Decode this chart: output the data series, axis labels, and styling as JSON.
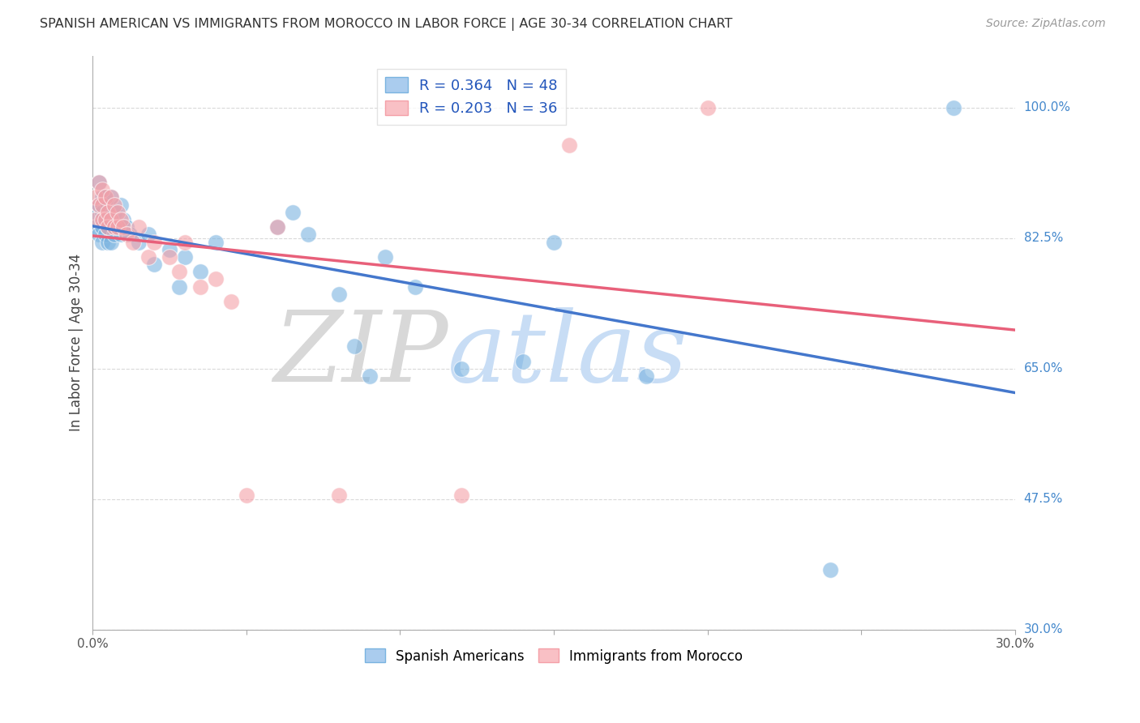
{
  "title": "SPANISH AMERICAN VS IMMIGRANTS FROM MOROCCO IN LABOR FORCE | AGE 30-34 CORRELATION CHART",
  "source": "Source: ZipAtlas.com",
  "ylabel": "In Labor Force | Age 30-34",
  "ylabel_right_ticks": [
    "100.0%",
    "82.5%",
    "65.0%",
    "47.5%",
    "30.0%"
  ],
  "ylabel_right_vals": [
    1.0,
    0.825,
    0.65,
    0.475,
    0.3
  ],
  "blue_R": 0.364,
  "blue_N": 48,
  "pink_R": 0.203,
  "pink_N": 36,
  "blue_color": "#7ab3e0",
  "pink_color": "#f4a0a8",
  "trend_blue": "#4477cc",
  "trend_pink": "#e8607a",
  "legend_label_blue": "Spanish Americans",
  "legend_label_pink": "Immigrants from Morocco",
  "xlim": [
    0.0,
    0.3
  ],
  "ylim": [
    0.3,
    1.07
  ],
  "bg_color": "#ffffff",
  "grid_color": "#d0d0d0",
  "blue_x": [
    0.001,
    0.001,
    0.002,
    0.002,
    0.002,
    0.003,
    0.003,
    0.003,
    0.003,
    0.004,
    0.004,
    0.004,
    0.005,
    0.005,
    0.005,
    0.006,
    0.006,
    0.006,
    0.007,
    0.007,
    0.008,
    0.009,
    0.009,
    0.01,
    0.011,
    0.012,
    0.015,
    0.018,
    0.02,
    0.025,
    0.028,
    0.03,
    0.035,
    0.04,
    0.06,
    0.065,
    0.07,
    0.08,
    0.085,
    0.09,
    0.095,
    0.105,
    0.12,
    0.14,
    0.15,
    0.18,
    0.24,
    0.28
  ],
  "blue_y": [
    0.86,
    0.84,
    0.9,
    0.87,
    0.83,
    0.88,
    0.86,
    0.84,
    0.82,
    0.88,
    0.85,
    0.83,
    0.87,
    0.84,
    0.82,
    0.88,
    0.85,
    0.82,
    0.86,
    0.83,
    0.84,
    0.87,
    0.83,
    0.85,
    0.84,
    0.83,
    0.82,
    0.83,
    0.79,
    0.81,
    0.76,
    0.8,
    0.78,
    0.82,
    0.84,
    0.86,
    0.83,
    0.75,
    0.68,
    0.64,
    0.8,
    0.76,
    0.65,
    0.66,
    0.82,
    0.64,
    0.38,
    1.0
  ],
  "pink_x": [
    0.001,
    0.001,
    0.002,
    0.002,
    0.003,
    0.003,
    0.003,
    0.004,
    0.004,
    0.005,
    0.005,
    0.006,
    0.006,
    0.007,
    0.007,
    0.008,
    0.008,
    0.009,
    0.01,
    0.011,
    0.013,
    0.015,
    0.018,
    0.02,
    0.025,
    0.028,
    0.03,
    0.035,
    0.04,
    0.045,
    0.05,
    0.06,
    0.08,
    0.12,
    0.155,
    0.2
  ],
  "pink_y": [
    0.88,
    0.85,
    0.9,
    0.87,
    0.89,
    0.87,
    0.85,
    0.88,
    0.85,
    0.86,
    0.84,
    0.88,
    0.85,
    0.87,
    0.84,
    0.86,
    0.84,
    0.85,
    0.84,
    0.83,
    0.82,
    0.84,
    0.8,
    0.82,
    0.8,
    0.78,
    0.82,
    0.76,
    0.77,
    0.74,
    0.48,
    0.84,
    0.48,
    0.48,
    0.95,
    1.0
  ]
}
